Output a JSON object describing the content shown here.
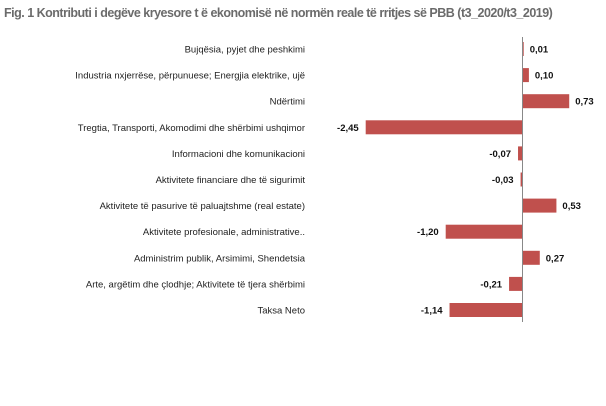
{
  "chart_data": {
    "type": "bar",
    "orientation": "horizontal",
    "title": "Fig. 1 Kontributi i degëve kryesore t ë ekonomisë në normën reale të rritjes së PBB (t3_2020/t3_2019)",
    "categories": [
      "Bujqësia, pyjet dhe peshkimi",
      "Industria nxjerrëse, përpunuese; Energjia elektrike, ujë",
      "Ndërtimi",
      "Tregtia, Transporti, Akomodimi dhe shërbimi ushqimor",
      "Informacioni dhe komunikacioni",
      "Aktivitete financiare dhe të sigurimit",
      "Aktivitete të pasurive të paluajtshme (real estate)",
      "Aktivitete profesionale, administrative..",
      "Administrim publik, Arsimimi, Shendetsia",
      "Arte, argëtim dhe çlodhje; Aktivitete të tjera shërbimi",
      "Taksa Neto"
    ],
    "values": [
      0.01,
      0.1,
      0.73,
      -2.45,
      -0.07,
      -0.03,
      0.53,
      -1.2,
      0.27,
      -0.21,
      -1.14
    ],
    "value_labels": [
      "0,01",
      "0,10",
      "0,73",
      "-2,45",
      "-0,07",
      "-0,03",
      "0,53",
      "-1,20",
      "0,27",
      "-0,21",
      "-1,14"
    ],
    "bar_color": "#c0504d",
    "xlim": [
      -2.45,
      0.73
    ],
    "grid": false,
    "legend": "none"
  }
}
